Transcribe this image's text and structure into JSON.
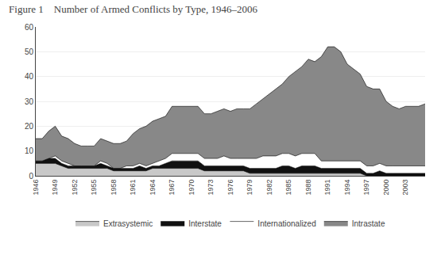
{
  "chart_data": {
    "type": "area",
    "title": "Figure 1    Number of Armed Conflicts by Type, 1946–2006",
    "x": [
      1946,
      1947,
      1948,
      1949,
      1950,
      1951,
      1952,
      1953,
      1954,
      1955,
      1956,
      1957,
      1958,
      1959,
      1960,
      1961,
      1962,
      1963,
      1964,
      1965,
      1966,
      1967,
      1968,
      1969,
      1970,
      1971,
      1972,
      1973,
      1974,
      1975,
      1976,
      1977,
      1978,
      1979,
      1980,
      1981,
      1982,
      1983,
      1984,
      1985,
      1986,
      1987,
      1988,
      1989,
      1990,
      1991,
      1992,
      1993,
      1994,
      1995,
      1996,
      1997,
      1998,
      1999,
      2000,
      2001,
      2002,
      2003,
      2004,
      2005,
      2006
    ],
    "series": [
      {
        "name": "Extrasystemic",
        "color": "#c8c8c8",
        "values": [
          5,
          5,
          5,
          5,
          4,
          3,
          3,
          3,
          3,
          3,
          3,
          3,
          2,
          2,
          2,
          2,
          2,
          2,
          3,
          3,
          3,
          3,
          3,
          3,
          3,
          3,
          2,
          2,
          2,
          2,
          2,
          2,
          2,
          1,
          1,
          1,
          1,
          1,
          1,
          1,
          1,
          1,
          1,
          1,
          1,
          1,
          1,
          1,
          1,
          1,
          1,
          0,
          0,
          0,
          0,
          0,
          0,
          0,
          0,
          0,
          0
        ]
      },
      {
        "name": "Interstate",
        "color": "#111111",
        "values": [
          1,
          1,
          2,
          2,
          1,
          1,
          1,
          1,
          1,
          1,
          2,
          1,
          1,
          1,
          1,
          1,
          2,
          1,
          1,
          1,
          2,
          3,
          3,
          3,
          3,
          3,
          2,
          2,
          2,
          2,
          2,
          2,
          2,
          2,
          2,
          2,
          2,
          2,
          3,
          3,
          2,
          3,
          3,
          3,
          2,
          2,
          2,
          2,
          2,
          2,
          2,
          1,
          1,
          2,
          1,
          1,
          1,
          1,
          1,
          1,
          1
        ]
      },
      {
        "name": "Internationalized",
        "color": "#ffffff",
        "values": [
          0,
          0,
          0,
          1,
          1,
          1,
          0,
          0,
          0,
          0,
          1,
          1,
          0,
          0,
          1,
          1,
          1,
          1,
          1,
          2,
          2,
          3,
          3,
          3,
          3,
          3,
          3,
          3,
          3,
          4,
          3,
          3,
          3,
          4,
          4,
          5,
          5,
          5,
          5,
          5,
          5,
          5,
          5,
          5,
          3,
          3,
          3,
          3,
          3,
          3,
          3,
          3,
          3,
          3,
          3,
          3,
          3,
          3,
          3,
          3,
          3
        ]
      },
      {
        "name": "Intrastate",
        "color": "#888888",
        "values": [
          9,
          9,
          11,
          12,
          10,
          10,
          9,
          8,
          8,
          8,
          9,
          9,
          10,
          10,
          10,
          13,
          14,
          16,
          17,
          17,
          17,
          19,
          19,
          19,
          19,
          19,
          18,
          18,
          19,
          19,
          19,
          20,
          20,
          20,
          22,
          23,
          25,
          27,
          28,
          31,
          34,
          35,
          38,
          37,
          42,
          46,
          46,
          44,
          39,
          37,
          35,
          32,
          31,
          30,
          26,
          24,
          23,
          24,
          24,
          24,
          25
        ]
      }
    ],
    "stacked": true,
    "xlim": [
      1946,
      2006
    ],
    "xticks": [
      1946,
      1949,
      1952,
      1955,
      1958,
      1961,
      1964,
      1967,
      1970,
      1973,
      1976,
      1979,
      1982,
      1985,
      1988,
      1991,
      1994,
      1997,
      2000,
      2003
    ],
    "ylim": [
      0,
      60
    ],
    "yticks": [
      0,
      10,
      20,
      30,
      40,
      50,
      60
    ],
    "grid": "y",
    "legend": "bottom"
  }
}
